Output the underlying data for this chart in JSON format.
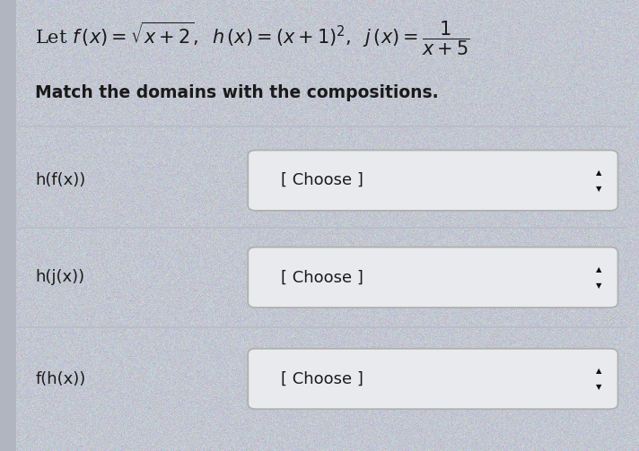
{
  "bg_color": "#d8dde8",
  "title_fontsize": 15,
  "subtitle_fontsize": 13.5,
  "label_fontsize": 13,
  "dropdown_fontsize": 13,
  "text_color": "#1a1a1a",
  "dropdown_bg": "#e8eaed",
  "dropdown_border": "#b0b0b0",
  "divider_color": "#b8bcc8",
  "arrow_color": "#111111",
  "rows": [
    {
      "label": "h(f(x))"
    },
    {
      "label": "h(j(x))"
    },
    {
      "label": "f(h(x))"
    }
  ],
  "dropdown_text": "[ Choose ]"
}
